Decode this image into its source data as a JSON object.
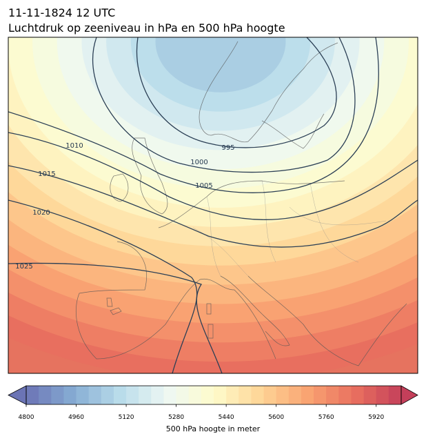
{
  "title": "11-11-1824 12 UTC",
  "subtitle": "Luchtdruk op zeeniveau in hPa en 500 hPa hoogte",
  "isobars": [
    995,
    1000,
    1005,
    1010,
    1015,
    1020,
    1025
  ],
  "colorbar": {
    "label": "500 hPa hoogte in meter",
    "lim": [
      4800,
      6000
    ],
    "step": 40,
    "ticks": [
      4800,
      4960,
      5120,
      5280,
      5440,
      5600,
      5760,
      5920
    ],
    "colormap": [
      "#6b74b5",
      "#86acd3",
      "#b9dcea",
      "#eef8f4",
      "#fefccc",
      "#fed596",
      "#f9a472",
      "#e9705f",
      "#c43f5a"
    ]
  }
}
